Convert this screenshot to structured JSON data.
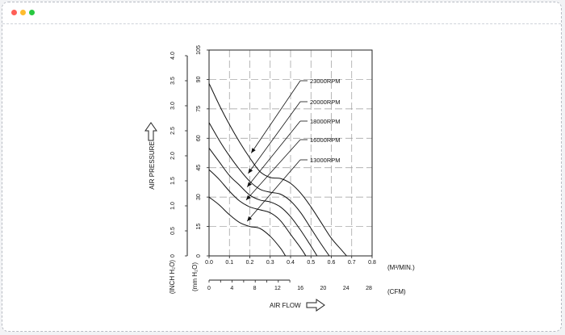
{
  "window": {
    "buttons": [
      {
        "name": "close",
        "color": "#ff5f57"
      },
      {
        "name": "minimize",
        "color": "#febc2e"
      },
      {
        "name": "maximize",
        "color": "#28c840"
      }
    ]
  },
  "chart_data": {
    "type": "line",
    "title": "",
    "xlabel": "AIR FLOW",
    "ylabel": "AIR PRESSURE",
    "x_unit": "(M³/MIN.)",
    "x2_unit": "(CFM)",
    "y_unit_inch": "(INCH H₂O)",
    "y_unit_mm": "(mm H₂O)",
    "xlim": [
      0,
      0.8
    ],
    "ylim": [
      0,
      105
    ],
    "x_ticks": [
      "0.0",
      "0.1",
      "0.2",
      "0.3",
      "0.4",
      "0.5",
      "0.6",
      "0.7",
      "0.8"
    ],
    "x2_ticks": [
      "0",
      "4",
      "8",
      "12",
      "16",
      "20",
      "24",
      "28"
    ],
    "y_ticks_mm": [
      "0",
      "15",
      "30",
      "45",
      "60",
      "75",
      "90",
      "105"
    ],
    "y_ticks_inch": [
      "0",
      "0.5",
      "1.0",
      "1.5",
      "2.0",
      "2.5",
      "3.0",
      "3.5",
      "4.0"
    ],
    "grid": true,
    "series": [
      {
        "name": "23000RPM",
        "x": [
          0.0,
          0.05,
          0.1,
          0.15,
          0.2,
          0.25,
          0.3,
          0.35,
          0.4,
          0.45,
          0.5,
          0.55,
          0.6,
          0.65,
          0.675
        ],
        "y": [
          88,
          77,
          67,
          58,
          50,
          43,
          40,
          39.5,
          37,
          32,
          25,
          17,
          9,
          3,
          0
        ]
      },
      {
        "name": "20000RPM",
        "x": [
          0.0,
          0.05,
          0.1,
          0.15,
          0.2,
          0.25,
          0.3,
          0.35,
          0.4,
          0.45,
          0.5,
          0.55,
          0.59
        ],
        "y": [
          68,
          59,
          51,
          44,
          38,
          34,
          32.5,
          31.5,
          28,
          22,
          14,
          6,
          0
        ]
      },
      {
        "name": "18000RPM",
        "x": [
          0.0,
          0.05,
          0.1,
          0.15,
          0.2,
          0.25,
          0.3,
          0.35,
          0.4,
          0.45,
          0.5,
          0.53
        ],
        "y": [
          55,
          48,
          41,
          36,
          31,
          28.5,
          27.5,
          25,
          20,
          13,
          5,
          0
        ]
      },
      {
        "name": "16000RPM",
        "x": [
          0.0,
          0.05,
          0.1,
          0.15,
          0.2,
          0.25,
          0.3,
          0.35,
          0.4,
          0.45,
          0.475
        ],
        "y": [
          44,
          39,
          33,
          28,
          25,
          23.5,
          22,
          18,
          11,
          4,
          0
        ]
      },
      {
        "name": "13000RPM",
        "x": [
          0.0,
          0.05,
          0.1,
          0.15,
          0.2,
          0.25,
          0.3,
          0.35,
          0.375
        ],
        "y": [
          30,
          26,
          21,
          17,
          15,
          14,
          10,
          4,
          0
        ]
      }
    ]
  }
}
